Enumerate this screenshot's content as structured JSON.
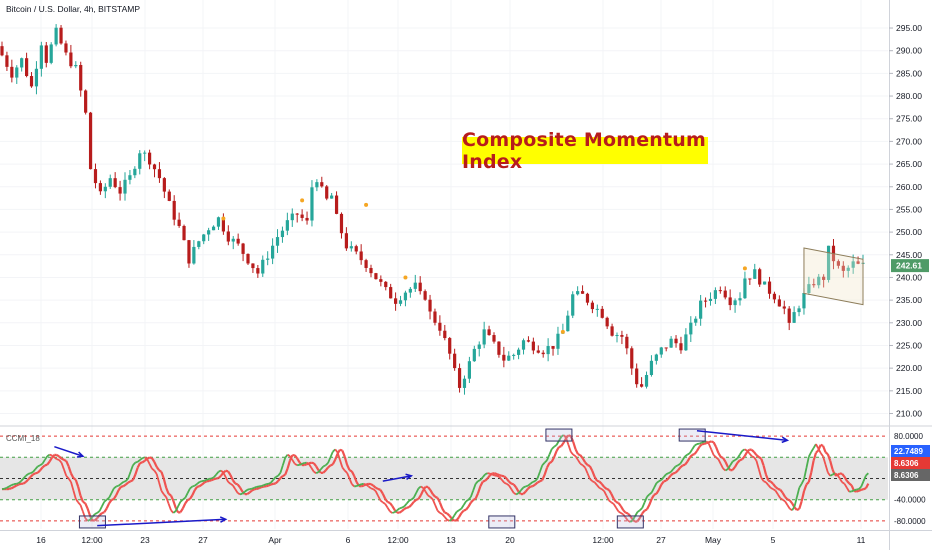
{
  "header": {
    "symbol_title": "Bitcoin / U.S. Dollar, 4h, BITSTAMP"
  },
  "annotation": {
    "banner_text": "Composite Momentum Index",
    "banner_bg": "#ffff00",
    "banner_color": "#b71c1c"
  },
  "indicator": {
    "label": "CCMI_18"
  },
  "colors": {
    "up_candle": "#26a69a",
    "down_candle": "#b71c1c",
    "last_price_bg": "#4f9b67",
    "ind_rising": "#4caf50",
    "ind_falling": "#ef5350",
    "ind_band_fill": "#e6e6e6",
    "ind_level_line": "#e53935",
    "ind_mid_line": "#43a047",
    "arrow": "#1a1ac8",
    "marker_dot": "#f5a623",
    "value_blue_bg": "#2962ff",
    "value_red_bg": "#e53935",
    "value_gray_bg": "#666666"
  },
  "chart_data": {
    "type": "candlestick",
    "title": "Bitcoin / U.S. Dollar, 4h, BITSTAMP",
    "price_axis": {
      "ylim": [
        207,
        297
      ],
      "ticks": [
        "295.00",
        "290.00",
        "285.00",
        "280.00",
        "275.00",
        "270.00",
        "265.00",
        "260.00",
        "255.00",
        "250.00",
        "245.00",
        "240.00",
        "235.00",
        "230.00",
        "225.00",
        "220.00",
        "215.00",
        "210.00"
      ],
      "last_price": "242.61"
    },
    "x_axis": {
      "tick_labels": [
        "16",
        "12:00",
        "23",
        "27",
        "Apr",
        "6",
        "12:00",
        "13",
        "20",
        "12:00",
        "27",
        "May",
        "5",
        "11"
      ]
    },
    "price_path": [
      [
        0,
        291
      ],
      [
        3,
        285
      ],
      [
        5,
        288
      ],
      [
        7,
        282
      ],
      [
        9,
        292
      ],
      [
        10,
        288
      ],
      [
        12,
        294
      ],
      [
        14,
        289
      ],
      [
        16,
        286
      ],
      [
        18,
        276
      ],
      [
        19,
        264
      ],
      [
        21,
        258
      ],
      [
        23,
        262
      ],
      [
        25,
        259
      ],
      [
        27,
        262
      ],
      [
        29,
        268
      ],
      [
        31,
        266
      ],
      [
        33,
        262
      ],
      [
        35,
        256
      ],
      [
        37,
        251
      ],
      [
        39,
        244
      ],
      [
        41,
        248
      ],
      [
        43,
        251
      ],
      [
        45,
        253
      ],
      [
        47,
        249
      ],
      [
        49,
        247
      ],
      [
        51,
        244
      ],
      [
        53,
        241
      ],
      [
        55,
        245
      ],
      [
        57,
        249
      ],
      [
        59,
        252
      ],
      [
        61,
        254
      ],
      [
        63,
        252
      ],
      [
        64,
        260
      ],
      [
        65,
        262
      ],
      [
        66,
        259
      ],
      [
        67,
        257
      ],
      [
        68,
        258
      ],
      [
        69,
        253
      ],
      [
        71,
        247
      ],
      [
        73,
        245
      ],
      [
        75,
        243
      ],
      [
        77,
        240
      ],
      [
        79,
        237
      ],
      [
        81,
        235
      ],
      [
        83,
        237
      ],
      [
        85,
        238
      ],
      [
        86,
        236
      ],
      [
        87,
        236
      ],
      [
        88,
        232
      ],
      [
        90,
        229
      ],
      [
        92,
        223
      ],
      [
        93,
        219
      ],
      [
        94,
        216
      ],
      [
        96,
        221
      ],
      [
        97,
        224
      ],
      [
        99,
        228
      ],
      [
        101,
        225
      ],
      [
        103,
        222
      ],
      [
        105,
        223
      ],
      [
        107,
        226
      ],
      [
        109,
        225
      ],
      [
        111,
        224
      ],
      [
        113,
        225
      ],
      [
        115,
        228
      ],
      [
        116,
        232
      ],
      [
        117,
        236
      ],
      [
        119,
        236
      ],
      [
        121,
        234
      ],
      [
        123,
        232
      ],
      [
        125,
        228
      ],
      [
        127,
        227
      ],
      [
        128,
        224
      ],
      [
        129,
        220
      ],
      [
        130,
        217
      ],
      [
        131,
        216
      ],
      [
        133,
        221
      ],
      [
        135,
        224
      ],
      [
        137,
        226
      ],
      [
        139,
        225
      ],
      [
        141,
        229
      ],
      [
        143,
        234
      ],
      [
        145,
        236
      ],
      [
        147,
        238
      ],
      [
        149,
        235
      ],
      [
        151,
        236
      ],
      [
        152,
        240
      ],
      [
        154,
        241
      ],
      [
        156,
        238
      ],
      [
        158,
        236
      ],
      [
        160,
        233
      ],
      [
        161,
        229
      ],
      [
        162,
        232
      ],
      [
        164,
        236
      ],
      [
        166,
        239
      ],
      [
        168,
        240
      ],
      [
        169,
        246
      ],
      [
        170,
        244
      ],
      [
        171,
        242
      ],
      [
        172,
        241
      ],
      [
        174,
        243
      ],
      [
        175,
        242.6
      ]
    ],
    "price_markers": [
      [
        45,
        253
      ],
      [
        61,
        257
      ],
      [
        74,
        256
      ],
      [
        82,
        240
      ],
      [
        114,
        228
      ],
      [
        151,
        242
      ]
    ],
    "channel_box": {
      "start": [
        163,
        246.5
      ],
      "end": [
        175,
        244
      ],
      "height": 10
    },
    "indicator": {
      "name": "CCMI_18",
      "ylim": [
        -92,
        92
      ],
      "levels": [
        80,
        -80
      ],
      "band": [
        40,
        -40
      ],
      "zero": 0,
      "levels_text": [
        "80.0000",
        "-40.0000",
        "-80.0000"
      ],
      "values_text": {
        "v1": "22.7489",
        "v2": "8.6306",
        "v3": "8.6306"
      },
      "path": [
        [
          0,
          -20
        ],
        [
          3,
          -10
        ],
        [
          6,
          10
        ],
        [
          8,
          25
        ],
        [
          10,
          45
        ],
        [
          12,
          35
        ],
        [
          14,
          0
        ],
        [
          16,
          -45
        ],
        [
          18,
          -80
        ],
        [
          20,
          -65
        ],
        [
          22,
          -40
        ],
        [
          24,
          -15
        ],
        [
          26,
          -5
        ],
        [
          28,
          30
        ],
        [
          30,
          40
        ],
        [
          32,
          15
        ],
        [
          34,
          -30
        ],
        [
          36,
          -65
        ],
        [
          38,
          -40
        ],
        [
          40,
          -15
        ],
        [
          42,
          -5
        ],
        [
          44,
          0
        ],
        [
          46,
          15
        ],
        [
          48,
          -10
        ],
        [
          50,
          -30
        ],
        [
          52,
          -20
        ],
        [
          54,
          -15
        ],
        [
          56,
          -10
        ],
        [
          58,
          5
        ],
        [
          60,
          45
        ],
        [
          62,
          25
        ],
        [
          64,
          30
        ],
        [
          66,
          10
        ],
        [
          68,
          25
        ],
        [
          70,
          55
        ],
        [
          72,
          15
        ],
        [
          74,
          -15
        ],
        [
          76,
          -10
        ],
        [
          78,
          -20
        ],
        [
          80,
          -45
        ],
        [
          82,
          -65
        ],
        [
          84,
          -55
        ],
        [
          86,
          -40
        ],
        [
          88,
          -15
        ],
        [
          90,
          -35
        ],
        [
          92,
          -65
        ],
        [
          94,
          -80
        ],
        [
          96,
          -60
        ],
        [
          98,
          -40
        ],
        [
          100,
          -5
        ],
        [
          102,
          10
        ],
        [
          104,
          5
        ],
        [
          106,
          -10
        ],
        [
          108,
          -30
        ],
        [
          110,
          -15
        ],
        [
          112,
          -5
        ],
        [
          114,
          30
        ],
        [
          116,
          60
        ],
        [
          118,
          82
        ],
        [
          120,
          45
        ],
        [
          122,
          25
        ],
        [
          124,
          -5
        ],
        [
          126,
          -20
        ],
        [
          128,
          -45
        ],
        [
          130,
          -65
        ],
        [
          132,
          -82
        ],
        [
          134,
          -60
        ],
        [
          136,
          -30
        ],
        [
          138,
          -5
        ],
        [
          140,
          10
        ],
        [
          142,
          25
        ],
        [
          144,
          45
        ],
        [
          146,
          65
        ],
        [
          148,
          70
        ],
        [
          150,
          40
        ],
        [
          152,
          15
        ],
        [
          154,
          35
        ],
        [
          156,
          55
        ],
        [
          158,
          40
        ],
        [
          160,
          -5
        ],
        [
          162,
          -20
        ],
        [
          164,
          -40
        ],
        [
          166,
          -60
        ],
        [
          168,
          -10
        ],
        [
          170,
          50
        ],
        [
          171,
          65
        ],
        [
          172,
          48
        ],
        [
          174,
          5
        ],
        [
          175,
          10
        ],
        [
          177,
          -10
        ],
        [
          178,
          -25
        ],
        [
          180,
          -20
        ],
        [
          182,
          10
        ]
      ],
      "boxes": [
        [
          19,
          -82
        ],
        [
          105,
          -82
        ],
        [
          132,
          -82
        ],
        [
          117,
          82
        ],
        [
          145,
          82
        ]
      ],
      "arrows": [
        [
          [
            11,
            60
          ],
          [
            17,
            42
          ]
        ],
        [
          [
            20,
            -89
          ],
          [
            47,
            -77
          ]
        ],
        [
          [
            80,
            -5
          ],
          [
            86,
            5
          ]
        ],
        [
          [
            146,
            90
          ],
          [
            165,
            72
          ]
        ]
      ]
    }
  }
}
